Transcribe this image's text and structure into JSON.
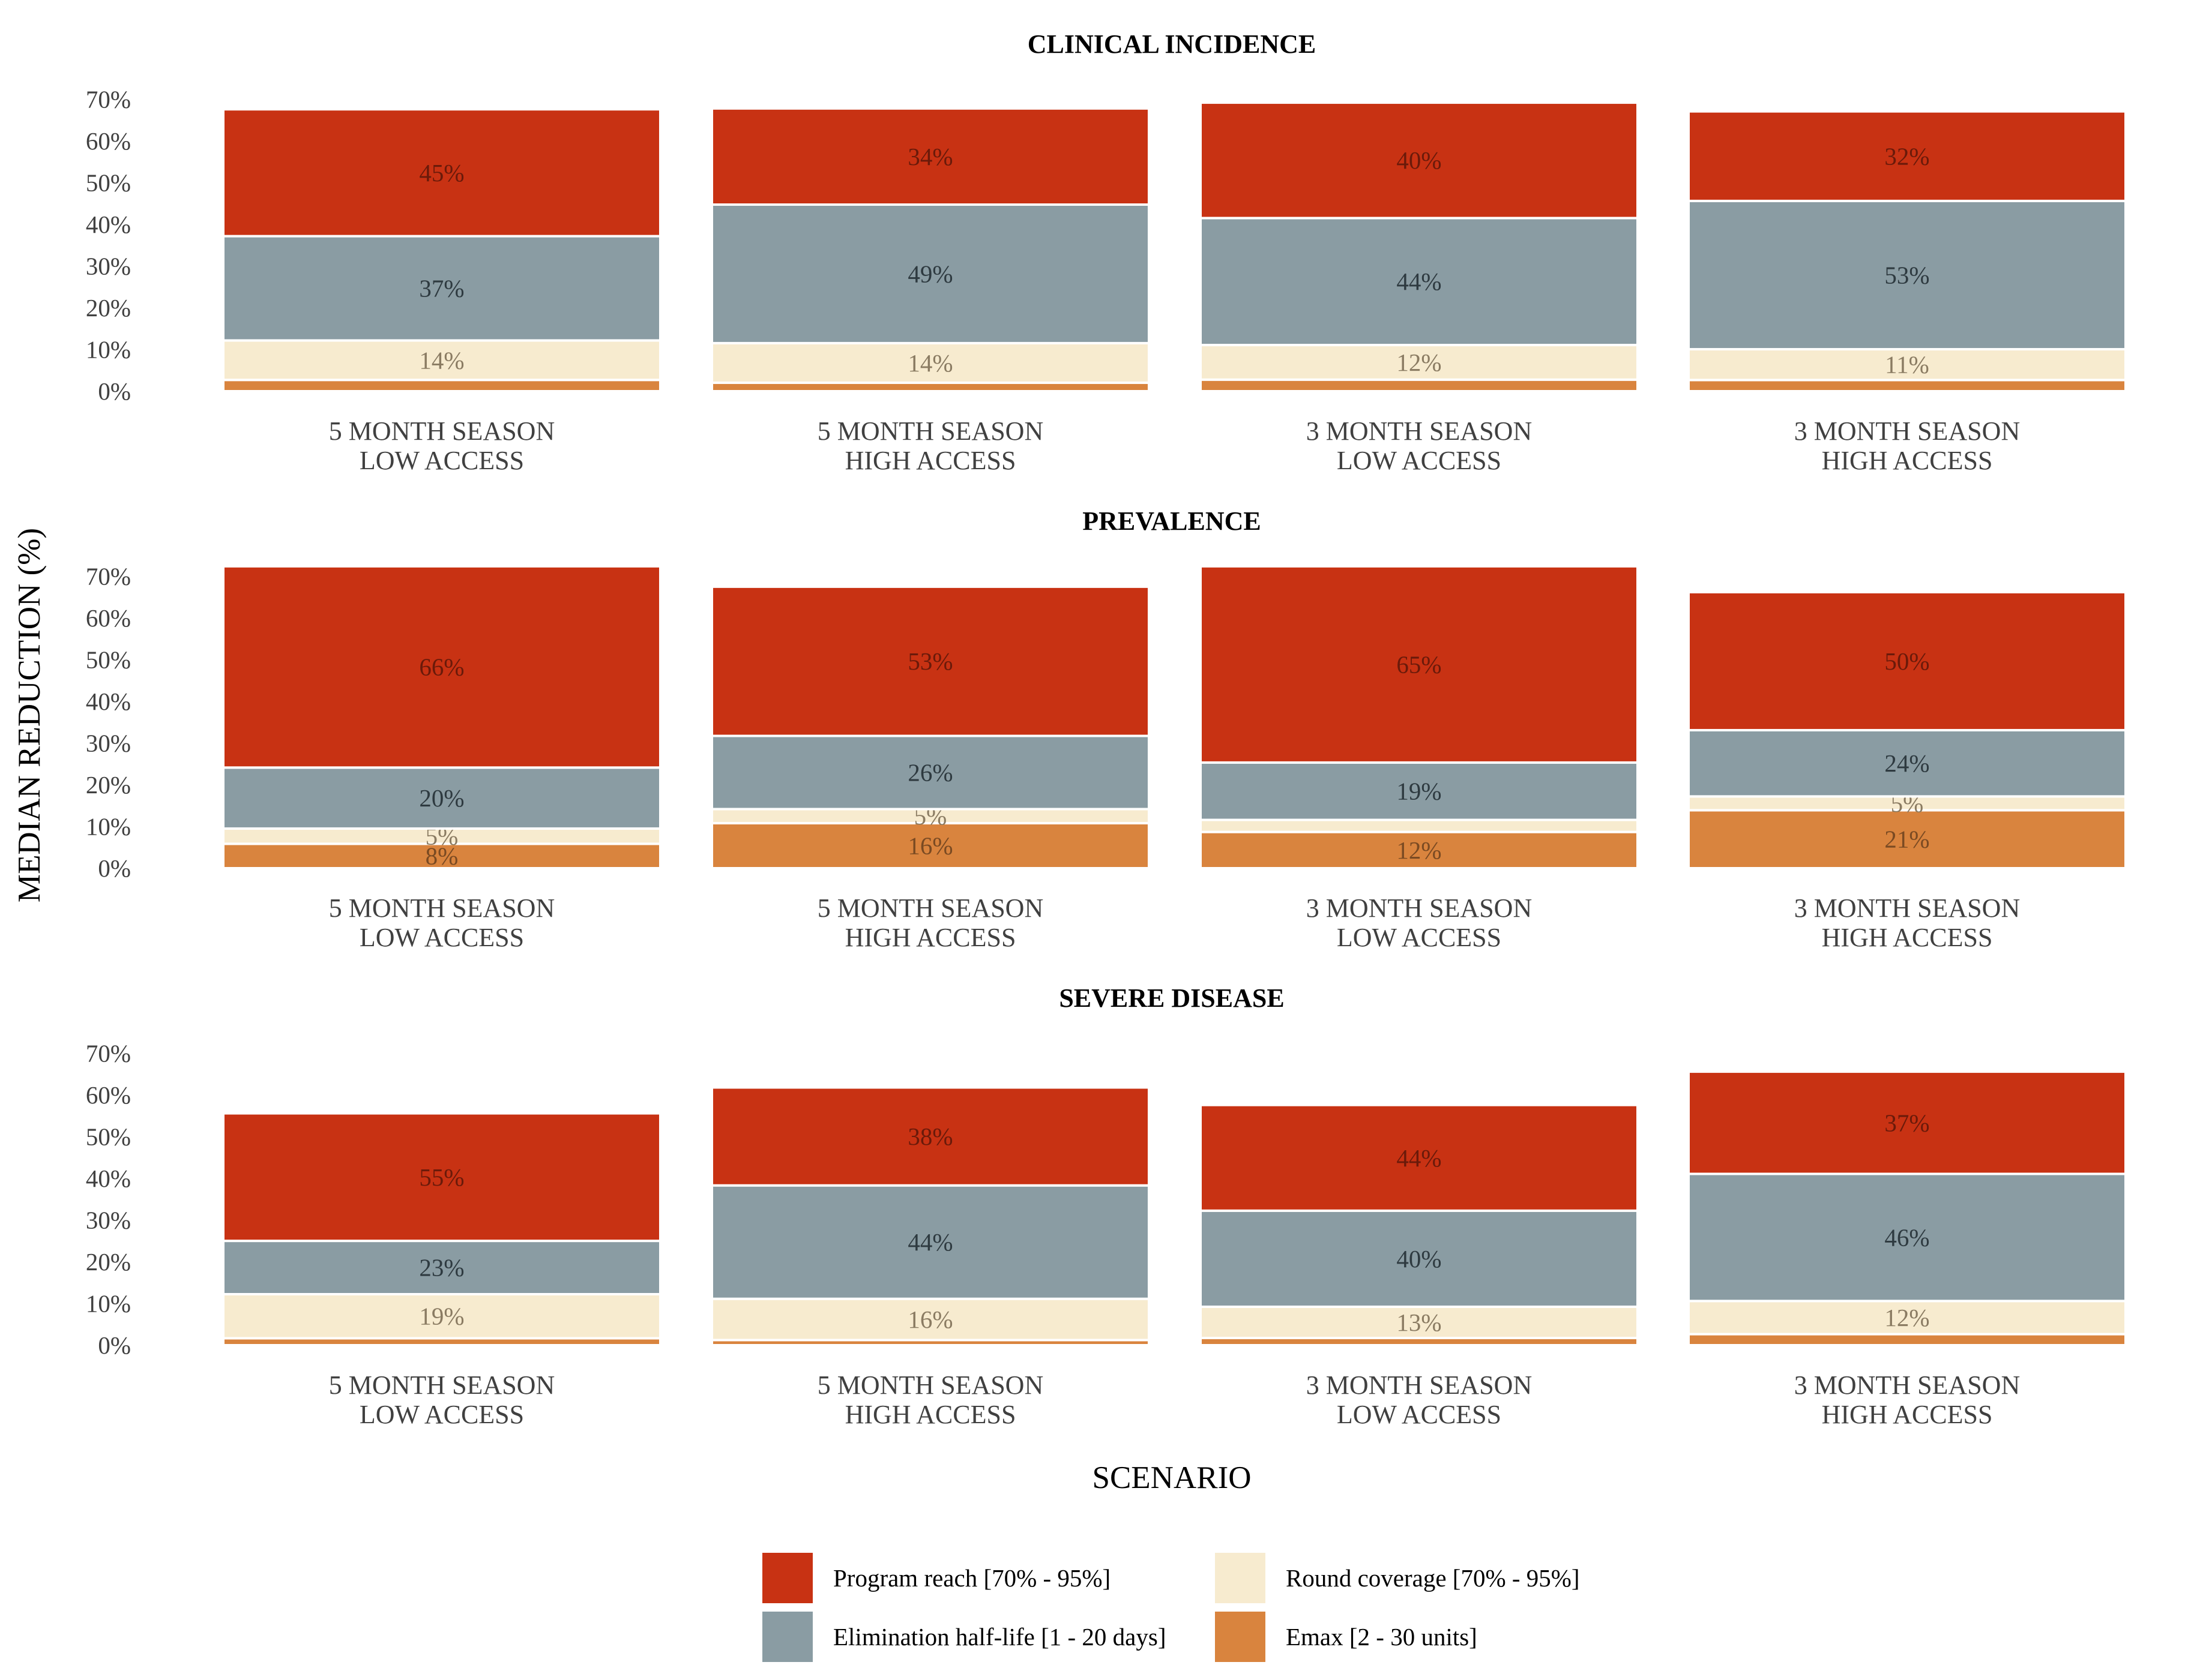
{
  "chart_data": {
    "type": "bar",
    "stacked": true,
    "ylabel": "MEDIAN  REDUCTION  (%)",
    "xlabel": "SCENARIO",
    "ylim": [
      0,
      70
    ],
    "yticks": [
      0,
      10,
      20,
      30,
      40,
      50,
      60,
      70
    ],
    "ytick_labels": [
      "0%",
      "10%",
      "20%",
      "30%",
      "40%",
      "50%",
      "60%",
      "70%"
    ],
    "grid": false,
    "legend_position": "bottom",
    "categories": [
      [
        "5 MONTH SEASON",
        "LOW ACCESS"
      ],
      [
        "5 MONTH SEASON",
        "HIGH ACCESS"
      ],
      [
        "3 MONTH SEASON",
        "LOW ACCESS"
      ],
      [
        "3 MONTH SEASON",
        "HIGH ACCESS"
      ]
    ],
    "series": [
      {
        "key": "emax",
        "name": "Emax [2 - 30 units]",
        "color": "#D9843E",
        "text_color": "#7a4a22"
      },
      {
        "key": "round",
        "name": "Round coverage [70% - 95%]",
        "color": "#F7EBCF",
        "text_color": "#8a7b62"
      },
      {
        "key": "halflife",
        "name": "Elimination half-life [1 - 20 days]",
        "color": "#8A9CA3",
        "text_color": "#2e3a40"
      },
      {
        "key": "reach",
        "name": "Program reach [70% - 95%]",
        "color": "#C83213",
        "text_color": "#6a1a0a"
      }
    ],
    "panels": [
      {
        "title": "CLINICAL INCIDENCE",
        "bars": [
          {
            "total": 67.6,
            "shares": [
              4,
              14,
              37,
              45
            ],
            "labels": [
              "",
              "14%",
              "37%",
              "45%"
            ]
          },
          {
            "total": 67.8,
            "shares": [
              3,
              14,
              49,
              34
            ],
            "labels": [
              "",
              "14%",
              "49%",
              "34%"
            ]
          },
          {
            "total": 69.2,
            "shares": [
              4,
              12,
              44,
              40
            ],
            "labels": [
              "",
              "12%",
              "44%",
              "40%"
            ]
          },
          {
            "total": 67.1,
            "shares": [
              4,
              11,
              53,
              32
            ],
            "labels": [
              "",
              "11%",
              "53%",
              "32%"
            ]
          }
        ]
      },
      {
        "title": "PREVALENCE",
        "bars": [
          {
            "total": 72.4,
            "shares": [
              8,
              5,
              20,
              66
            ],
            "labels": [
              "8%",
              "5%",
              "20%",
              "66%"
            ]
          },
          {
            "total": 67.5,
            "shares": [
              16,
              5,
              26,
              53
            ],
            "labels": [
              "16%",
              "5%",
              "26%",
              "53%"
            ]
          },
          {
            "total": 72.4,
            "shares": [
              12,
              4,
              19,
              65
            ],
            "labels": [
              "12%",
              "",
              "19%",
              "65%"
            ]
          },
          {
            "total": 66.2,
            "shares": [
              21,
              5,
              24,
              50
            ],
            "labels": [
              "21%",
              "5%",
              "24%",
              "50%"
            ]
          }
        ]
      },
      {
        "title": "SEVERE DISEASE",
        "bars": [
          {
            "total": 55.6,
            "shares": [
              3,
              19,
              23,
              55
            ],
            "labels": [
              "",
              "19%",
              "23%",
              "55%"
            ]
          },
          {
            "total": 61.8,
            "shares": [
              2,
              16,
              44,
              38
            ],
            "labels": [
              "",
              "16%",
              "44%",
              "38%"
            ]
          },
          {
            "total": 57.6,
            "shares": [
              3,
              13,
              40,
              44
            ],
            "labels": [
              "",
              "13%",
              "40%",
              "44%"
            ]
          },
          {
            "total": 65.6,
            "shares": [
              4,
              12,
              46,
              37
            ],
            "labels": [
              "",
              "12%",
              "46%",
              "37%"
            ]
          }
        ]
      }
    ],
    "legend_order": [
      "reach",
      "round",
      "halflife",
      "emax"
    ]
  }
}
